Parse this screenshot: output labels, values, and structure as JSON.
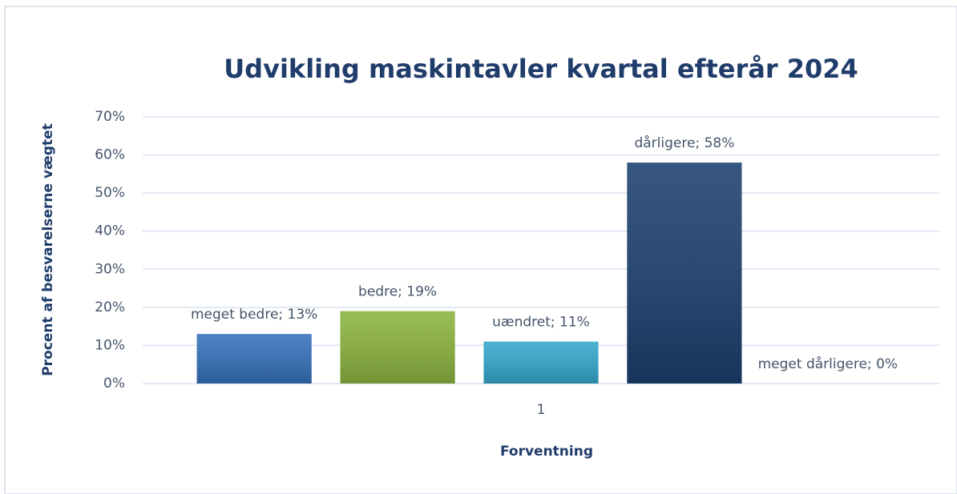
{
  "chart_data": {
    "type": "bar",
    "title": "Udvikling maskintavler kvartal efterår 2024",
    "x_label": "Forventning",
    "y_label": "Procent af besvarelserne vægtet",
    "categories": [
      "1"
    ],
    "series": [
      {
        "color": "#3470bb",
        "values": [
          13
        ],
        "value_labels": [
          "meget bedre; 13%"
        ]
      },
      {
        "color": "#8ab33e",
        "values": [
          19
        ],
        "value_labels": [
          "bedre; 19%"
        ]
      },
      {
        "color": "#33a8cc",
        "values": [
          11
        ],
        "value_labels": [
          "uændret; 11%"
        ]
      },
      {
        "color": "#1b3f6e",
        "values": [
          58
        ],
        "value_labels": [
          "dårligere; 58%"
        ]
      },
      {
        "color": "#5b8fd0",
        "values": [
          0
        ],
        "value_labels": [
          "meget dårligere; 0%"
        ]
      }
    ],
    "ylim": [
      0,
      70
    ],
    "yticks": [
      {
        "value": 0,
        "label": "0%"
      },
      {
        "value": 10,
        "label": "10%"
      },
      {
        "value": 20,
        "label": "20%"
      },
      {
        "value": 30,
        "label": "30%"
      },
      {
        "value": 40,
        "label": "40%"
      },
      {
        "value": 50,
        "label": "50%"
      },
      {
        "value": 60,
        "label": "60%"
      },
      {
        "value": 70,
        "label": "70%"
      }
    ],
    "grid": true
  }
}
